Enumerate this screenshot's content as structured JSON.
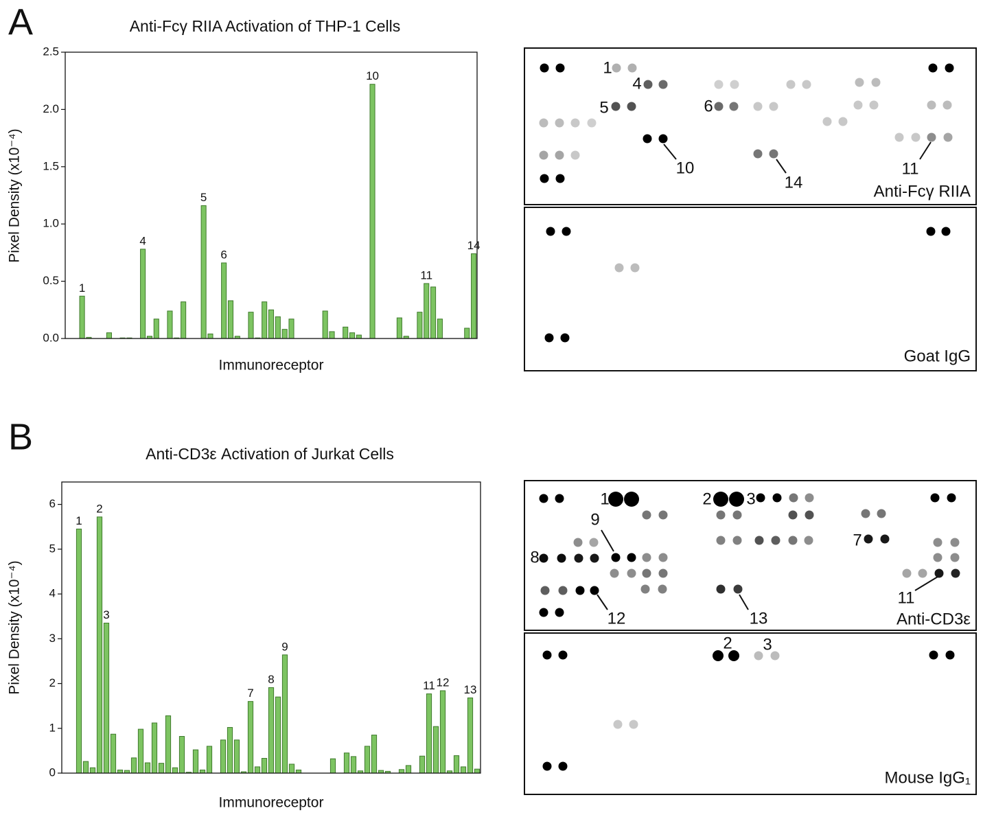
{
  "chart_data": [
    {
      "type": "bar",
      "title": "Anti-Fcγ RIIA Activation of THP-1 Cells",
      "xlabel": "Immunoreceptor",
      "ylabel": "Pixel Density (x10⁻⁴)",
      "categories": [
        null,
        null,
        null,
        null,
        null,
        null,
        null,
        null,
        null,
        null,
        null,
        null,
        null,
        null,
        null,
        null,
        null,
        null,
        null,
        null,
        null,
        null,
        null,
        null,
        null,
        null,
        null,
        null,
        null,
        null,
        null,
        null,
        null,
        null,
        null,
        null,
        null,
        null,
        null,
        null,
        null,
        null,
        null,
        null,
        null,
        null,
        null,
        null,
        null,
        null,
        null,
        null,
        null,
        null,
        null,
        null,
        null,
        null,
        null,
        null,
        null
      ],
      "values": [
        null,
        null,
        0.37,
        0.01,
        null,
        null,
        0.05,
        null,
        0.005,
        0.005,
        null,
        0.78,
        0.02,
        0.17,
        null,
        0.24,
        0.005,
        0.32,
        null,
        null,
        1.16,
        0.04,
        null,
        0.66,
        0.33,
        0.02,
        null,
        0.23,
        0.005,
        0.32,
        0.25,
        0.19,
        0.08,
        0.17,
        null,
        null,
        null,
        null,
        0.24,
        0.06,
        null,
        0.1,
        0.05,
        0.03,
        null,
        2.22,
        null,
        null,
        null,
        0.18,
        0.02,
        null,
        0.23,
        0.48,
        0.45,
        0.17,
        null,
        null,
        null,
        0.09,
        0.74
      ],
      "bar_labels": [
        null,
        null,
        "1",
        null,
        null,
        null,
        null,
        null,
        null,
        null,
        null,
        "4",
        null,
        null,
        null,
        null,
        null,
        null,
        null,
        null,
        "5",
        null,
        null,
        "6",
        null,
        null,
        null,
        null,
        null,
        null,
        null,
        null,
        null,
        null,
        null,
        null,
        null,
        null,
        null,
        null,
        null,
        null,
        null,
        null,
        null,
        "10",
        null,
        null,
        null,
        null,
        null,
        null,
        null,
        "11",
        null,
        null,
        null,
        null,
        null,
        null,
        "14"
      ],
      "color": "#7dc462",
      "ylim": [
        0,
        2.5
      ],
      "yticks": [
        {
          "value": 0,
          "label": "0.0"
        },
        0.5,
        {
          "value": 1,
          "label": "1.0"
        },
        1.5,
        {
          "value": 2,
          "label": "2.0"
        },
        2.5
      ],
      "grid": false
    },
    {
      "type": "bar",
      "title": "Anti-CD3ε Activation of Jurkat Cells",
      "xlabel": "Immunoreceptor",
      "ylabel": "Pixel Density (x10⁻⁴)",
      "categories": [
        null,
        null,
        null,
        null,
        null,
        null,
        null,
        null,
        null,
        null,
        null,
        null,
        null,
        null,
        null,
        null,
        null,
        null,
        null,
        null,
        null,
        null,
        null,
        null,
        null,
        null,
        null,
        null,
        null,
        null,
        null,
        null,
        null,
        null,
        null,
        null,
        null,
        null,
        null,
        null,
        null,
        null,
        null,
        null,
        null,
        null,
        null,
        null,
        null,
        null,
        null,
        null,
        null,
        null,
        null,
        null,
        null,
        null,
        null,
        null,
        null
      ],
      "values": [
        null,
        null,
        5.45,
        0.26,
        0.12,
        5.72,
        3.35,
        0.87,
        0.07,
        0.06,
        0.34,
        0.98,
        0.23,
        1.12,
        0.22,
        1.28,
        0.12,
        0.82,
        0.02,
        0.52,
        0.07,
        0.6,
        null,
        0.74,
        1.02,
        0.74,
        0.03,
        1.6,
        0.14,
        0.33,
        1.91,
        1.7,
        2.64,
        0.2,
        0.07,
        null,
        null,
        null,
        null,
        0.32,
        null,
        0.45,
        0.37,
        0.05,
        0.6,
        0.85,
        0.06,
        0.04,
        null,
        0.08,
        0.17,
        null,
        0.38,
        1.77,
        1.04,
        1.84,
        0.05,
        0.39,
        0.14,
        1.68,
        0.09
      ],
      "bar_labels": [
        null,
        null,
        "1",
        null,
        null,
        "2",
        "3",
        null,
        null,
        null,
        null,
        null,
        null,
        null,
        null,
        null,
        null,
        null,
        null,
        null,
        null,
        null,
        null,
        null,
        null,
        null,
        null,
        "7",
        null,
        null,
        "8",
        null,
        "9",
        null,
        null,
        null,
        null,
        null,
        null,
        null,
        null,
        null,
        null,
        null,
        null,
        null,
        null,
        null,
        null,
        null,
        null,
        null,
        null,
        "11",
        null,
        "12",
        null,
        null,
        null,
        "13",
        null
      ],
      "color": "#7dc462",
      "ylim": [
        0,
        6.5
      ],
      "yticks": [
        0,
        1,
        2,
        3,
        4,
        5,
        6
      ],
      "grid": false
    }
  ],
  "panels": [
    {
      "label": "A",
      "blots": [
        {
          "title": "Anti-Fcγ RIIA",
          "callouts": [
            "1",
            "4",
            "5",
            "6",
            "10",
            "14",
            "11"
          ]
        },
        {
          "title": "Goat IgG"
        }
      ]
    },
    {
      "label": "B",
      "blots": [
        {
          "title": "Anti-CD3ε",
          "callouts": [
            "1",
            "2",
            "3",
            "9",
            "7",
            "8",
            "12",
            "13",
            "11"
          ]
        },
        {
          "title": "Mouse IgG₁",
          "callouts": [
            "2",
            "3"
          ]
        }
      ]
    }
  ]
}
